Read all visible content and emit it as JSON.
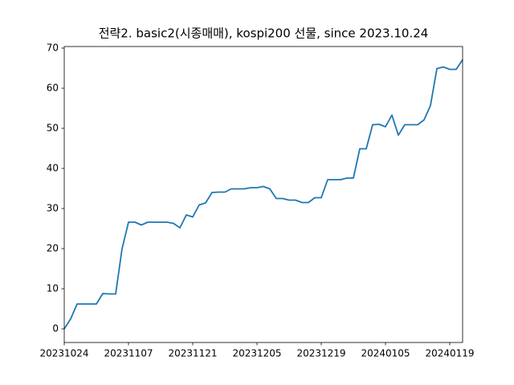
{
  "chart_data": {
    "type": "line",
    "title": "전략2. basic2(시종매매), kospi200 선물, since 2023.10.24",
    "categories": [
      "20231024",
      null,
      null,
      null,
      null,
      null,
      null,
      null,
      null,
      null,
      "20231107",
      null,
      null,
      null,
      null,
      null,
      null,
      null,
      null,
      null,
      "20231121",
      null,
      null,
      null,
      null,
      null,
      null,
      null,
      null,
      null,
      "20231205",
      null,
      null,
      null,
      null,
      null,
      null,
      null,
      null,
      null,
      "20231219",
      null,
      null,
      null,
      null,
      null,
      null,
      null,
      null,
      null,
      "20240105",
      null,
      null,
      null,
      null,
      null,
      null,
      null,
      null,
      null,
      "20240119",
      null,
      null
    ],
    "series": [
      {
        "color": "#1f77b4",
        "values": [
          0,
          2.5,
          6.2,
          6.2,
          6.2,
          6.2,
          8.8,
          8.7,
          8.7,
          20,
          26.6,
          26.6,
          25.9,
          26.6,
          26.6,
          26.6,
          26.6,
          26.3,
          25.2,
          28.4,
          27.9,
          30.9,
          31.4,
          34,
          34.1,
          34.1,
          34.9,
          34.9,
          34.9,
          35.2,
          35.2,
          35.5,
          34.9,
          32.5,
          32.5,
          32.1,
          32.1,
          31.5,
          31.5,
          32.7,
          32.7,
          37.2,
          37.2,
          37.2,
          37.6,
          37.6,
          44.9,
          44.9,
          50.9,
          51,
          50.4,
          53.3,
          48.3,
          50.9,
          50.9,
          50.9,
          52.1,
          55.7,
          64.9,
          65.3,
          64.7,
          64.7,
          67.1
        ]
      }
    ],
    "ylim": [
      -3.4,
      70.4
    ],
    "yticks": [
      0,
      10,
      20,
      30,
      40,
      50,
      60,
      70
    ]
  }
}
